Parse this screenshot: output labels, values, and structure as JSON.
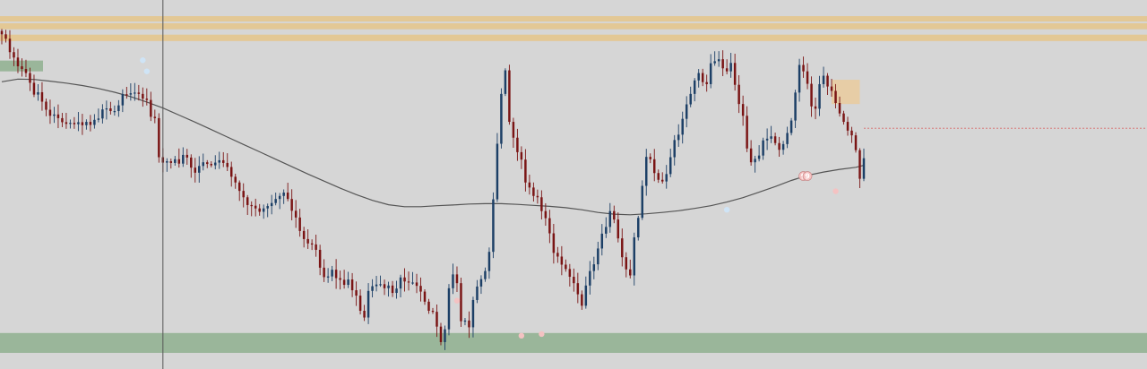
{
  "chart_data": {
    "type": "candlestick",
    "title": "",
    "xlabel": "",
    "ylabel": "",
    "ylim": [
      0,
      100
    ],
    "grid": false,
    "legend": "none",
    "colors": {
      "background": "#d6d6d6",
      "up": "#1c3f66",
      "down": "#7a1414",
      "moving_average": "#555555",
      "resistance_zone": "#e5c58a",
      "support_zone": "#93b393",
      "cursor_line": "#555555",
      "price_line": "#d86a6a",
      "box": "#f0c88c"
    },
    "prices": [
      94.6,
      93.3,
      89.3,
      87.7,
      85.1,
      84.3,
      83.1,
      80.2,
      76.7,
      77.4,
      74.6,
      72.2,
      70.4,
      70.8,
      69.7,
      68.5,
      68.0,
      68.3,
      67.9,
      68.5,
      67.6,
      68.6,
      67.7,
      69.2,
      69.6,
      72.3,
      72.6,
      71.8,
      71.8,
      73.5,
      76.8,
      76.7,
      77.1,
      77.3,
      76.9,
      75.5,
      75.1,
      70.1,
      69.7,
      58.1,
      56.5,
      56.9,
      56.4,
      57.5,
      56.2,
      58.8,
      58.0,
      55.0,
      53.5,
      55.5,
      56.6,
      56.1,
      55.7,
      56.5,
      57.2,
      56.4,
      55.2,
      52.3,
      50.6,
      48.1,
      46.2,
      43.9,
      43.7,
      42.9,
      41.9,
      42.9,
      43.6,
      44.5,
      45.7,
      46.6,
      47.6,
      45.7,
      42.2,
      40.2,
      36.2,
      33.8,
      32.5,
      32.2,
      30.6,
      25.3,
      22.5,
      22.7,
      24.7,
      22.2,
      21.7,
      20.2,
      21.8,
      18.6,
      17.0,
      12.5,
      10.5,
      18.4,
      19.8,
      20.3,
      20.4,
      19.2,
      20.0,
      17.8,
      19.1,
      22.4,
      21.2,
      20.9,
      20.9,
      19.9,
      18.2,
      15.2,
      12.5,
      12.2,
      7.8,
      3.2,
      7.0,
      19.2,
      23.3,
      20.7,
      9.4,
      9.6,
      7.6,
      15.7,
      19.7,
      21.9,
      24.3,
      30.0,
      45.6,
      62.1,
      76.9,
      83.9,
      68.6,
      63.9,
      59.6,
      57.4,
      50.6,
      49.1,
      46.6,
      46.2,
      42.1,
      40.0,
      35.5,
      29.7,
      28.6,
      26.2,
      24.9,
      22.6,
      20.7,
      17.4,
      14.0,
      20.0,
      24.3,
      26.3,
      31.0,
      35.4,
      37.4,
      42.1,
      39.6,
      34.0,
      28.4,
      24.8,
      23.0,
      34.3,
      40.1,
      49.6,
      58.2,
      57.5,
      53.4,
      51.4,
      50.9,
      53.1,
      58.1,
      63.2,
      64.8,
      69.5,
      73.8,
      76.9,
      80.9,
      83.1,
      80.4,
      79.8,
      86.0,
      86.6,
      87.2,
      84.5,
      83.6,
      86.1,
      79.6,
      73.9,
      70.4,
      60.7,
      56.6,
      57.6,
      58.6,
      63.1,
      63.6,
      64.3,
      62.3,
      60.3,
      62.0,
      65.3,
      69.0,
      77.3,
      85.5,
      83.6,
      79.9,
      73.2,
      72.5,
      79.8,
      82.3,
      79.1,
      77.8,
      74.2,
      71.1,
      68.6,
      66.0,
      64.6,
      60.2,
      51.7,
      57.8
    ],
    "moving_average": [
      80.5,
      81.3,
      81.2,
      80.7,
      80.1,
      79.4,
      78.5,
      77.4,
      76.1,
      74.5,
      72.7,
      70.6,
      68.5,
      66.3,
      64.1,
      61.9,
      59.7,
      57.5,
      55.3,
      53.1,
      51.0,
      48.9,
      47.0,
      45.3,
      44.0,
      43.4,
      43.4,
      43.7,
      43.9,
      44.2,
      44.3,
      44.3,
      44.1,
      43.8,
      43.5,
      43.1,
      42.5,
      41.7,
      41.2,
      41.0,
      41.3,
      41.7,
      42.2,
      42.9,
      43.7,
      44.8,
      46.1,
      47.7,
      49.4,
      51.2,
      52.7,
      53.7,
      54.5,
      55.1,
      55.7,
      56.4
    ],
    "ma_period_step": 4,
    "resistance_zones": [
      [
        98.4,
        100.0
      ],
      [
        96.1,
        97.9
      ],
      [
        92.6,
        94.5
      ]
    ],
    "support_zones": [
      [
        0,
        5.9
      ],
      [
        83.6,
        86.8
      ]
    ],
    "price_line_value": 66.7,
    "highlight_box": {
      "from": 206,
      "to": 213,
      "low": 73.9,
      "high": 81.1
    },
    "cursor_index": 40,
    "signal_markers": [
      {
        "index": 35,
        "value": 86.9,
        "label": "",
        "color": "#cfe4f6"
      },
      {
        "index": 36,
        "value": 83.6,
        "label": "",
        "color": "#cfe4f6"
      },
      {
        "index": 113,
        "value": 15.5,
        "label": "",
        "color": "#f4c2c2"
      },
      {
        "index": 129,
        "value": 5.1,
        "label": "",
        "color": "#f4c2c2"
      },
      {
        "index": 134,
        "value": 5.6,
        "label": "",
        "color": "#f4c2c2"
      },
      {
        "index": 199,
        "value": 52.5,
        "label": "9",
        "color": "#f4c2c2"
      },
      {
        "index": 200,
        "value": 52.5,
        "label": "9",
        "color": "#f4c2c2"
      },
      {
        "index": 180,
        "value": 42.5,
        "label": "",
        "color": "#cfe4f6"
      },
      {
        "index": 207,
        "value": 48.0,
        "label": "",
        "color": "#f4c2c2"
      }
    ]
  }
}
